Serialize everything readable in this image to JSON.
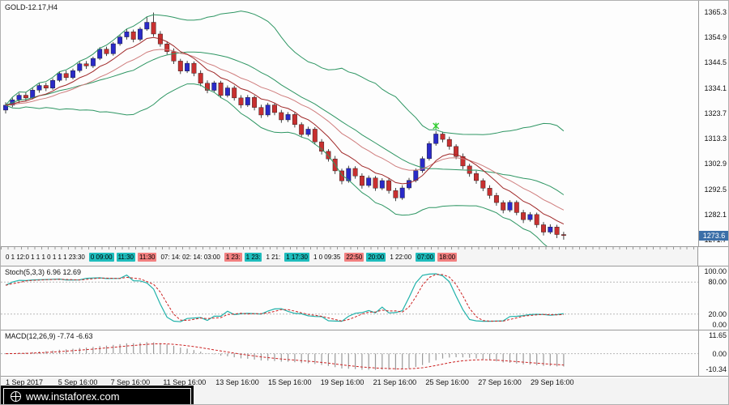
{
  "window": {
    "symbol_label": "GOLD-12.17,H4"
  },
  "colors": {
    "bull": "#2a2ac8",
    "bear": "#c83030",
    "wick": "#151515",
    "bands": "#2e9663",
    "ema_fast": "#a02828",
    "ema_slow": "#cf7d7d",
    "stoch_k": "#20b2aa",
    "stoch_d": "#cc2222",
    "macd_hist": "#9a9a9a",
    "macd_signal": "#cc2222",
    "price_box": "#3b6fa8",
    "chip_teal": "#1fbdbd",
    "chip_red": "#f28080",
    "marker_green": "#33cc33",
    "grid": "#b8b8b8"
  },
  "chart_data": [
    {
      "type": "candlestick",
      "title": "GOLD-12.17,H4",
      "symbol": "GOLD-12.17",
      "timeframe": "H4",
      "current_price": "1273.6",
      "ylim": [
        1269.2,
        1369.8
      ],
      "y_ticks": [
        "1365.3",
        "1354.9",
        "1344.5",
        "1334.1",
        "1323.7",
        "1313.3",
        "1302.9",
        "1292.5",
        "1282.1",
        "1271.7"
      ],
      "x_labels": [
        "1 Sep 2017",
        "5 Sep 16:00",
        "7 Sep 16:00",
        "11 Sep 16:00",
        "13 Sep 16:00",
        "15 Sep 16:00",
        "19 Sep 16:00",
        "21 Sep 16:00",
        "25 Sep 16:00",
        "27 Sep 16:00",
        "29 Sep 16:00"
      ],
      "overlays": [
        {
          "name": "bollinger-bands",
          "period": 20,
          "deviation": 2
        },
        {
          "name": "ema-fast",
          "period": 8
        },
        {
          "name": "ema-slow",
          "period": 16
        }
      ],
      "marker": {
        "index": 64,
        "price": 1318.5,
        "type": "star"
      },
      "candles": [
        [
          1325.0,
          1328.2,
          1323.6,
          1327.0
        ],
        [
          1327.0,
          1330.1,
          1326.2,
          1329.2
        ],
        [
          1329.2,
          1332.0,
          1327.9,
          1331.1
        ],
        [
          1331.1,
          1332.4,
          1328.8,
          1330.0
        ],
        [
          1330.0,
          1334.3,
          1329.4,
          1333.2
        ],
        [
          1333.2,
          1336.0,
          1332.1,
          1335.1
        ],
        [
          1335.1,
          1336.2,
          1332.8,
          1334.0
        ],
        [
          1334.0,
          1338.0,
          1333.3,
          1337.2
        ],
        [
          1337.2,
          1340.9,
          1336.5,
          1340.0
        ],
        [
          1340.0,
          1341.2,
          1337.1,
          1338.3
        ],
        [
          1338.3,
          1342.0,
          1337.6,
          1341.2
        ],
        [
          1341.2,
          1344.8,
          1340.4,
          1344.0
        ],
        [
          1344.0,
          1345.1,
          1341.9,
          1343.1
        ],
        [
          1343.1,
          1346.9,
          1342.3,
          1346.2
        ],
        [
          1346.2,
          1350.8,
          1345.5,
          1350.0
        ],
        [
          1350.0,
          1351.0,
          1347.2,
          1348.1
        ],
        [
          1348.1,
          1352.9,
          1347.3,
          1352.2
        ],
        [
          1352.2,
          1355.8,
          1351.4,
          1355.0
        ],
        [
          1355.0,
          1358.2,
          1353.9,
          1357.1
        ],
        [
          1357.1,
          1358.0,
          1352.8,
          1354.0
        ],
        [
          1354.0,
          1359.0,
          1353.2,
          1358.2
        ],
        [
          1358.2,
          1363.4,
          1357.5,
          1361.0
        ],
        [
          1361.0,
          1365.0,
          1355.1,
          1356.2
        ],
        [
          1356.2,
          1357.4,
          1351.0,
          1352.1
        ],
        [
          1352.1,
          1353.2,
          1347.8,
          1349.0
        ],
        [
          1349.0,
          1350.3,
          1343.9,
          1345.1
        ],
        [
          1345.1,
          1346.0,
          1339.8,
          1341.0
        ],
        [
          1341.0,
          1345.2,
          1340.2,
          1344.2
        ],
        [
          1344.2,
          1345.0,
          1338.9,
          1340.1
        ],
        [
          1340.1,
          1341.3,
          1334.8,
          1336.0
        ],
        [
          1336.0,
          1337.2,
          1331.9,
          1333.1
        ],
        [
          1333.1,
          1337.0,
          1332.3,
          1336.2
        ],
        [
          1336.2,
          1337.0,
          1329.9,
          1331.0
        ],
        [
          1331.0,
          1335.1,
          1330.2,
          1334.1
        ],
        [
          1334.1,
          1335.0,
          1328.9,
          1330.0
        ],
        [
          1330.0,
          1331.1,
          1325.8,
          1327.1
        ],
        [
          1327.1,
          1331.2,
          1326.3,
          1330.2
        ],
        [
          1330.2,
          1331.0,
          1324.9,
          1326.1
        ],
        [
          1326.1,
          1327.2,
          1321.8,
          1323.0
        ],
        [
          1323.0,
          1328.0,
          1322.2,
          1327.1
        ],
        [
          1327.1,
          1328.0,
          1322.9,
          1324.0
        ],
        [
          1324.0,
          1325.1,
          1319.8,
          1321.0
        ],
        [
          1321.0,
          1324.2,
          1320.1,
          1323.2
        ],
        [
          1323.2,
          1324.0,
          1317.9,
          1319.1
        ],
        [
          1319.1,
          1320.0,
          1313.8,
          1315.0
        ],
        [
          1315.0,
          1318.2,
          1314.2,
          1317.2
        ],
        [
          1317.2,
          1318.0,
          1310.9,
          1312.0
        ],
        [
          1312.0,
          1313.1,
          1306.8,
          1308.1
        ],
        [
          1308.1,
          1309.0,
          1303.9,
          1305.0
        ],
        [
          1305.0,
          1306.2,
          1298.8,
          1300.1
        ],
        [
          1300.1,
          1301.0,
          1294.6,
          1296.0
        ],
        [
          1296.0,
          1302.2,
          1295.2,
          1301.1
        ],
        [
          1301.1,
          1302.0,
          1296.9,
          1298.0
        ],
        [
          1298.0,
          1299.1,
          1292.8,
          1294.1
        ],
        [
          1294.1,
          1298.2,
          1293.3,
          1297.2
        ],
        [
          1297.2,
          1298.0,
          1291.9,
          1293.0
        ],
        [
          1293.0,
          1297.1,
          1292.2,
          1296.1
        ],
        [
          1296.1,
          1297.0,
          1290.8,
          1292.0
        ],
        [
          1292.0,
          1293.1,
          1287.7,
          1289.0
        ],
        [
          1289.0,
          1294.2,
          1288.2,
          1293.1
        ],
        [
          1293.1,
          1297.2,
          1292.3,
          1296.2
        ],
        [
          1296.2,
          1301.1,
          1295.4,
          1300.2
        ],
        [
          1300.2,
          1306.0,
          1299.3,
          1305.1
        ],
        [
          1305.1,
          1312.2,
          1304.3,
          1311.3
        ],
        [
          1311.3,
          1316.4,
          1310.4,
          1315.2
        ],
        [
          1315.2,
          1316.2,
          1311.8,
          1313.0
        ],
        [
          1313.0,
          1314.1,
          1308.8,
          1310.1
        ],
        [
          1310.1,
          1311.0,
          1304.9,
          1306.0
        ],
        [
          1306.0,
          1307.2,
          1300.8,
          1302.1
        ],
        [
          1302.1,
          1303.0,
          1297.7,
          1299.0
        ],
        [
          1299.0,
          1300.1,
          1294.8,
          1296.1
        ],
        [
          1296.1,
          1297.0,
          1291.8,
          1293.0
        ],
        [
          1293.0,
          1294.2,
          1288.7,
          1290.0
        ],
        [
          1290.0,
          1291.1,
          1285.8,
          1287.1
        ],
        [
          1287.1,
          1288.0,
          1282.7,
          1284.0
        ],
        [
          1284.0,
          1288.1,
          1283.2,
          1287.2
        ],
        [
          1287.2,
          1288.0,
          1281.9,
          1283.0
        ],
        [
          1283.0,
          1284.1,
          1278.7,
          1280.1
        ],
        [
          1280.1,
          1283.2,
          1279.3,
          1282.2
        ],
        [
          1282.2,
          1283.0,
          1276.8,
          1278.0
        ],
        [
          1278.0,
          1279.1,
          1273.6,
          1275.0
        ],
        [
          1275.0,
          1278.2,
          1274.2,
          1277.1
        ],
        [
          1277.1,
          1278.0,
          1272.5,
          1274.0
        ],
        [
          1274.0,
          1275.1,
          1271.9,
          1273.6
        ]
      ]
    },
    {
      "type": "line",
      "name": "stochastic",
      "label": "Stoch(5,3,3) 6.96 12.69",
      "params": [
        5,
        3,
        3
      ],
      "current_values": [
        "6.96",
        "12.69"
      ],
      "ylim": [
        0,
        100
      ],
      "levels": [
        80,
        20
      ],
      "y_ticks": [
        "100.00",
        "80.00",
        "20.00",
        "0.00"
      ]
    },
    {
      "type": "macd",
      "name": "macd",
      "label": "MACD(12,26,9) -7.74 -6.63",
      "params": [
        12,
        26,
        9
      ],
      "current_values": [
        "-7.74",
        "-6.63"
      ],
      "ylim": [
        -12.8,
        13.4
      ],
      "y_ticks": [
        "11.65",
        "0.00",
        "-10.34"
      ]
    }
  ],
  "timeline_strip": {
    "items": [
      {
        "text": "0 1 12:0 1 1 1 0 1 1 1 23:30",
        "style": "plain"
      },
      {
        "text": "0 09:00",
        "style": "teal"
      },
      {
        "text": "11:30",
        "style": "teal"
      },
      {
        "text": "11:30",
        "style": "red"
      },
      {
        "text": "07: 14: 02: 14: 03:00",
        "style": "plain"
      },
      {
        "text": "1 23:",
        "style": "red"
      },
      {
        "text": "1 23:",
        "style": "teal"
      },
      {
        "text": "1 21:",
        "style": "plain"
      },
      {
        "text": "1 17:30",
        "style": "teal"
      },
      {
        "text": "1 0 09:35",
        "style": "plain"
      },
      {
        "text": "22:50",
        "style": "red"
      },
      {
        "text": "20:00",
        "style": "teal"
      },
      {
        "text": "1 22:00",
        "style": "plain"
      },
      {
        "text": "07:00",
        "style": "teal"
      },
      {
        "text": "18:00",
        "style": "red"
      }
    ]
  },
  "footer": {
    "logo_text": "www.instaforex.com"
  }
}
